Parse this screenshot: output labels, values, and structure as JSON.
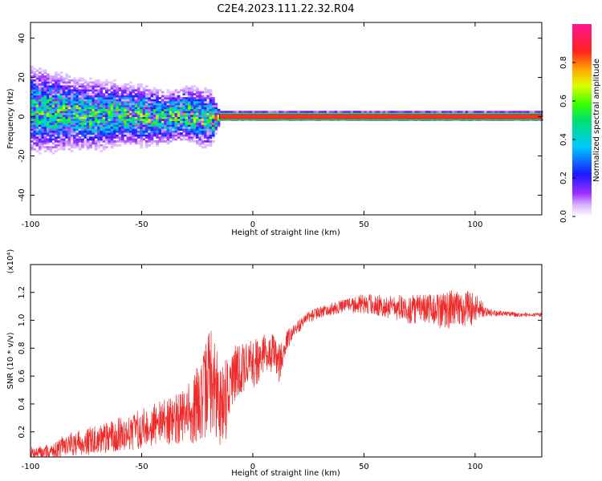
{
  "title": "C2E4.2023.111.22.32.R04",
  "colors": {
    "snr_line": "#ee2b2b",
    "axis": "#000000",
    "plot_bg": "#ffffff"
  },
  "chart_data": [
    {
      "type": "heatmap",
      "xlabel": "Height of straight line (km)",
      "ylabel": "Frequency (Hz)",
      "xlim": [
        -100,
        130
      ],
      "ylim": [
        -50,
        48
      ],
      "xticks": [
        -100,
        -50,
        0,
        50,
        100
      ],
      "yticks": [
        -40,
        -20,
        0,
        20,
        40
      ],
      "colorbar": {
        "label": "Normalized spectral amplitude",
        "range": [
          0,
          1
        ],
        "ticks": [
          "0.0",
          "0.2",
          "0.4",
          "0.6",
          "0.8"
        ],
        "colormap": "rainbow (white - violet - blue - cyan - green - yellow - orange - red - magenta)"
      },
      "ridge": [
        {
          "x": -100,
          "center_hz": 3,
          "spread_hz": 10,
          "amplitude": 0.45
        },
        {
          "x": -90,
          "center_hz": 2,
          "spread_hz": 9,
          "amplitude": 0.5
        },
        {
          "x": -80,
          "center_hz": 1,
          "spread_hz": 8,
          "amplitude": 0.5
        },
        {
          "x": -70,
          "center_hz": 0,
          "spread_hz": 8,
          "amplitude": 0.5
        },
        {
          "x": -60,
          "center_hz": 1,
          "spread_hz": 7,
          "amplitude": 0.5
        },
        {
          "x": -50,
          "center_hz": 0,
          "spread_hz": 7,
          "amplitude": 0.5
        },
        {
          "x": -40,
          "center_hz": -1,
          "spread_hz": 6,
          "amplitude": 0.5
        },
        {
          "x": -30,
          "center_hz": 1,
          "spread_hz": 6,
          "amplitude": 0.55
        },
        {
          "x": -20,
          "center_hz": -2,
          "spread_hz": 7,
          "amplitude": 0.5
        },
        {
          "x": -15,
          "center_hz": 0,
          "spread_hz": 1,
          "amplitude": 0.9
        },
        {
          "x": 0,
          "center_hz": 0,
          "spread_hz": 1,
          "amplitude": 0.9
        },
        {
          "x": 50,
          "center_hz": 0,
          "spread_hz": 1,
          "amplitude": 0.9
        },
        {
          "x": 100,
          "center_hz": 0,
          "spread_hz": 1,
          "amplitude": 0.9
        },
        {
          "x": 130,
          "center_hz": 0,
          "spread_hz": 1,
          "amplitude": 0.9
        }
      ]
    },
    {
      "type": "line",
      "xlabel": "Height of straight line (km)",
      "ylabel": "SNR (10 * v/v)",
      "y_multiplier": "(x10⁴)",
      "xlim": [
        -100,
        130
      ],
      "ylim": [
        0.02,
        1.4
      ],
      "xticks": [
        -100,
        -50,
        0,
        50,
        100
      ],
      "yticks": [
        "0.2",
        "0.4",
        "0.6",
        "0.8",
        "1.0",
        "1.2"
      ],
      "series": [
        {
          "x": [
            -100,
            -95,
            -90,
            -85,
            -80,
            -75,
            -70,
            -65,
            -60,
            -55,
            -50,
            -45,
            -40,
            -35,
            -30,
            -25,
            -22,
            -20,
            -18,
            -15,
            -12,
            -10,
            -8,
            -5,
            -2,
            0,
            3,
            6,
            10,
            12,
            15,
            20,
            25,
            30,
            40,
            50,
            60,
            70,
            80,
            90,
            100,
            105,
            110,
            120,
            130
          ],
          "mid": [
            0.05,
            0.05,
            0.06,
            0.1,
            0.12,
            0.13,
            0.14,
            0.16,
            0.18,
            0.2,
            0.22,
            0.25,
            0.27,
            0.28,
            0.3,
            0.4,
            0.45,
            0.6,
            0.55,
            0.4,
            0.45,
            0.55,
            0.6,
            0.65,
            0.7,
            0.68,
            0.72,
            0.78,
            0.75,
            0.7,
            0.85,
            0.95,
            1.02,
            1.06,
            1.1,
            1.12,
            1.1,
            1.08,
            1.07,
            1.08,
            1.09,
            1.06,
            1.05,
            1.04,
            1.04
          ],
          "amp": [
            0.04,
            0.05,
            0.05,
            0.08,
            0.09,
            0.1,
            0.1,
            0.11,
            0.12,
            0.13,
            0.14,
            0.15,
            0.16,
            0.18,
            0.22,
            0.28,
            0.32,
            0.38,
            0.38,
            0.3,
            0.3,
            0.24,
            0.22,
            0.2,
            0.18,
            0.18,
            0.15,
            0.14,
            0.14,
            0.15,
            0.07,
            0.05,
            0.04,
            0.04,
            0.05,
            0.07,
            0.08,
            0.1,
            0.12,
            0.14,
            0.12,
            0.03,
            0.02,
            0.015,
            0.015
          ]
        }
      ]
    }
  ]
}
